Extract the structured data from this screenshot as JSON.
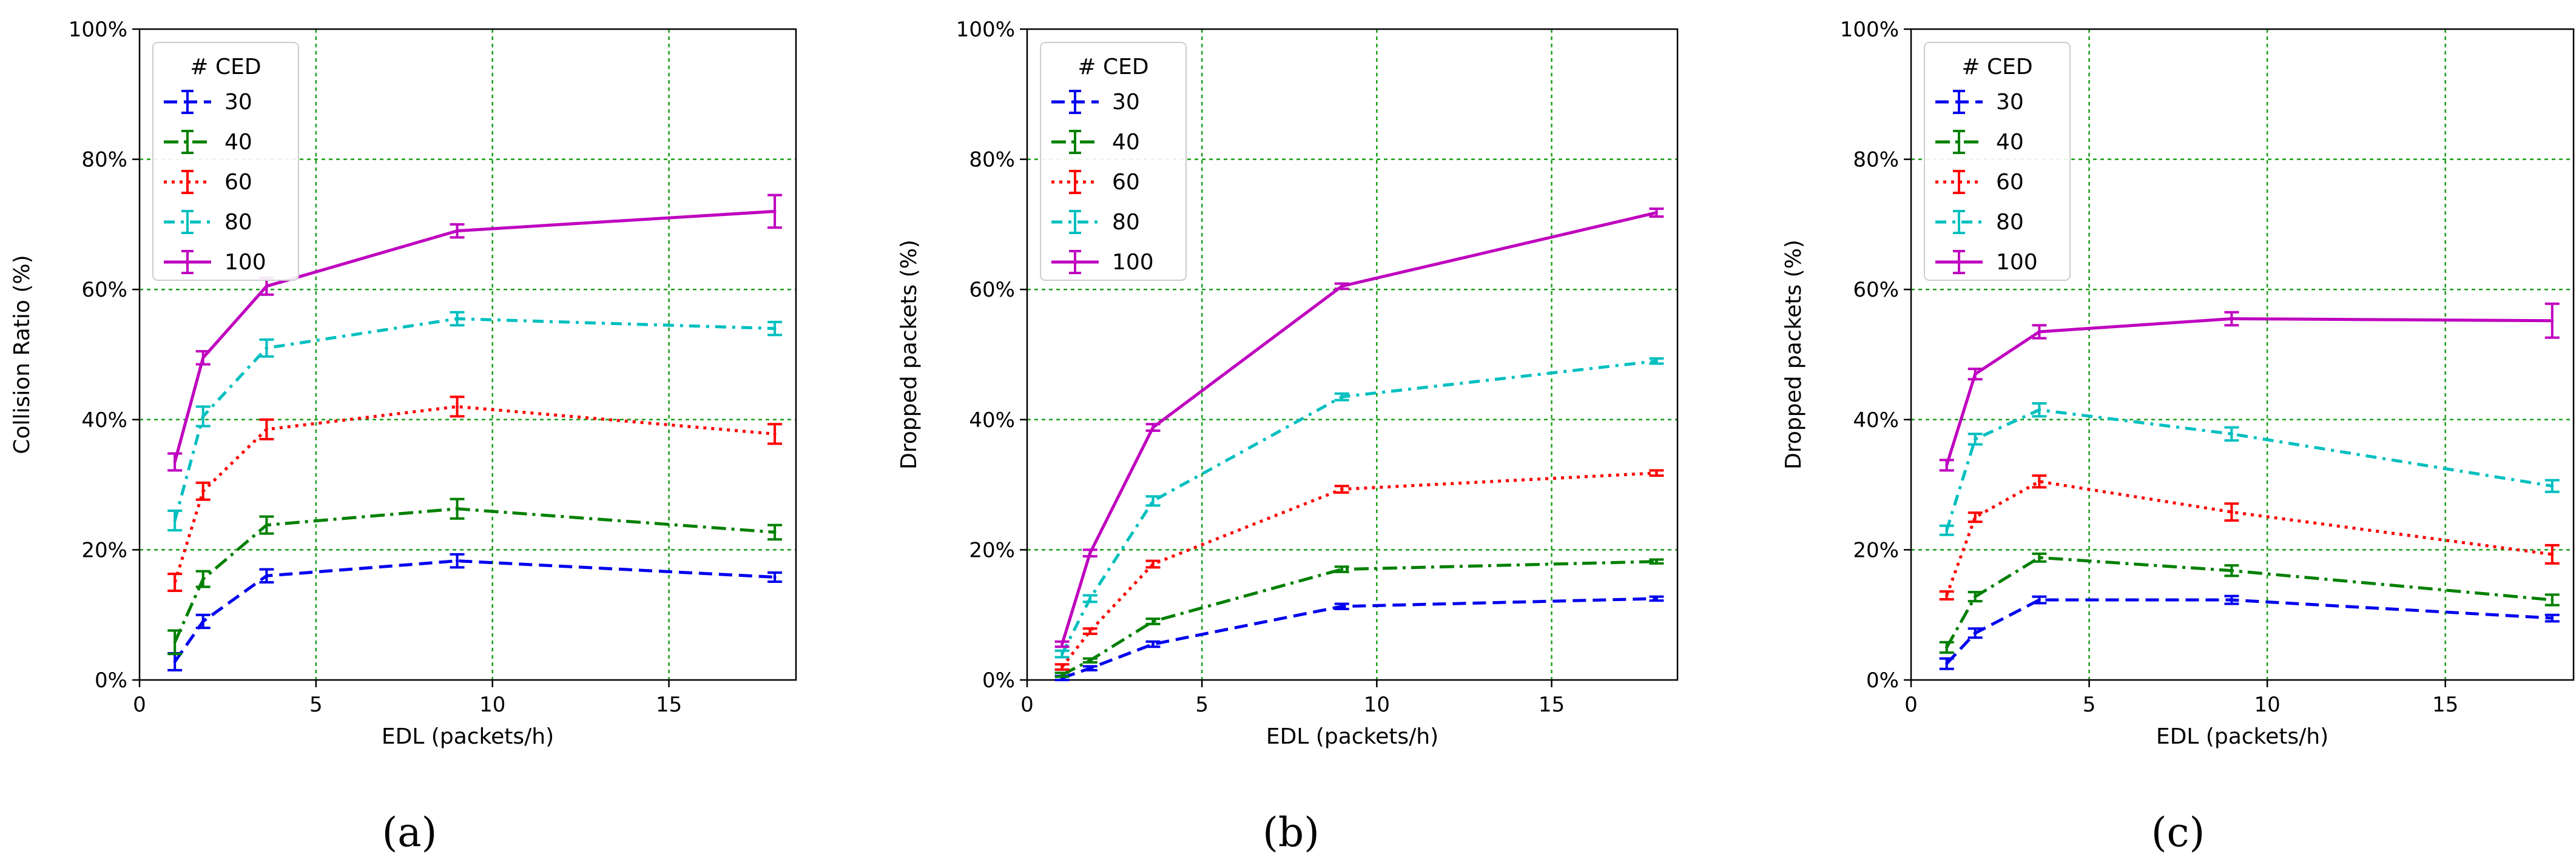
{
  "legend_title": "# CED",
  "xlabel": "EDL (packets/h)",
  "x_ticks": [
    "0",
    "5",
    "10",
    "15"
  ],
  "y_ticks": [
    "0%",
    "20%",
    "40%",
    "60%",
    "80%",
    "100%"
  ],
  "series_styles": [
    {
      "name": "30",
      "color": "#0000ee",
      "dash": "dashed"
    },
    {
      "name": "40",
      "color": "#008000",
      "dash": "dashdot"
    },
    {
      "name": "60",
      "color": "#ff0000",
      "dash": "dotted"
    },
    {
      "name": "80",
      "color": "#00bfbf",
      "dash": "dashdot2"
    },
    {
      "name": "100",
      "color": "#bf00bf",
      "dash": "solid"
    }
  ],
  "chart_data": [
    {
      "type": "line",
      "label": "a",
      "caption": "(a)",
      "ylabel": "Collision Ratio (%)",
      "xlabel": "EDL (packets/h)",
      "xlim": [
        0,
        18.6
      ],
      "ylim": [
        0,
        100
      ],
      "x": [
        1,
        1.8,
        3.6,
        9,
        18
      ],
      "series": [
        {
          "name": "30",
          "values": [
            2.8,
            9,
            16,
            18.3,
            15.8
          ],
          "err": [
            1.3,
            1,
            1,
            1,
            0.7
          ]
        },
        {
          "name": "40",
          "values": [
            5.8,
            15.5,
            23.8,
            26.3,
            22.7
          ],
          "err": [
            1.8,
            1.2,
            1.3,
            1.5,
            1.1
          ]
        },
        {
          "name": "60",
          "values": [
            15,
            29,
            38.5,
            42,
            37.8
          ],
          "err": [
            1.3,
            1.3,
            1.5,
            1.5,
            1.5
          ]
        },
        {
          "name": "80",
          "values": [
            24.5,
            40.5,
            51,
            55.5,
            54
          ],
          "err": [
            1.5,
            1.5,
            1.3,
            1,
            1
          ]
        },
        {
          "name": "100",
          "values": [
            33.5,
            49.5,
            60.5,
            69,
            72
          ],
          "err": [
            1.3,
            1,
            1.3,
            1,
            2.5
          ]
        }
      ]
    },
    {
      "type": "line",
      "label": "b",
      "caption": "(b)",
      "ylabel": "Dropped packets (%)",
      "xlabel": "EDL (packets/h)",
      "xlim": [
        0,
        18.6
      ],
      "ylim": [
        0,
        100
      ],
      "x": [
        1,
        1.8,
        3.6,
        9,
        18
      ],
      "series": [
        {
          "name": "30",
          "values": [
            0.3,
            1.8,
            5.5,
            11.3,
            12.5
          ],
          "err": [
            0.3,
            0.3,
            0.4,
            0.4,
            0.3
          ]
        },
        {
          "name": "40",
          "values": [
            0.8,
            3,
            9,
            17,
            18.2
          ],
          "err": [
            0.3,
            0.3,
            0.4,
            0.4,
            0.3
          ]
        },
        {
          "name": "60",
          "values": [
            2,
            7.5,
            17.8,
            29.3,
            31.8
          ],
          "err": [
            0.4,
            0.4,
            0.5,
            0.5,
            0.4
          ]
        },
        {
          "name": "80",
          "values": [
            4,
            12.5,
            27.5,
            43.5,
            49
          ],
          "err": [
            0.5,
            0.5,
            0.7,
            0.5,
            0.4
          ]
        },
        {
          "name": "100",
          "values": [
            5.5,
            19.5,
            38.8,
            60.5,
            71.8
          ],
          "err": [
            0.4,
            0.5,
            0.5,
            0.4,
            0.6
          ]
        }
      ]
    },
    {
      "type": "line",
      "label": "c",
      "caption": "(c)",
      "ylabel": "Dropped packets (%)",
      "xlabel": "EDL (packets/h)",
      "xlim": [
        0,
        18.6
      ],
      "ylim": [
        0,
        100
      ],
      "x": [
        1,
        1.8,
        3.6,
        9,
        18
      ],
      "series": [
        {
          "name": "30",
          "values": [
            2.5,
            7.2,
            12.3,
            12.3,
            9.5
          ],
          "err": [
            0.8,
            0.7,
            0.5,
            0.6,
            0.5
          ]
        },
        {
          "name": "40",
          "values": [
            5,
            12.8,
            18.8,
            16.8,
            12.3
          ],
          "err": [
            0.8,
            0.7,
            0.6,
            0.8,
            0.8
          ]
        },
        {
          "name": "60",
          "values": [
            13,
            25,
            30.5,
            25.8,
            19.3
          ],
          "err": [
            0.6,
            0.7,
            0.9,
            1.3,
            1.4
          ]
        },
        {
          "name": "80",
          "values": [
            23,
            37,
            41.5,
            37.8,
            29.8
          ],
          "err": [
            0.7,
            0.8,
            1,
            1,
            0.9
          ]
        },
        {
          "name": "100",
          "values": [
            33,
            47,
            53.5,
            55.5,
            55.2
          ],
          "err": [
            0.8,
            0.8,
            1,
            1,
            2.6
          ]
        }
      ]
    }
  ]
}
